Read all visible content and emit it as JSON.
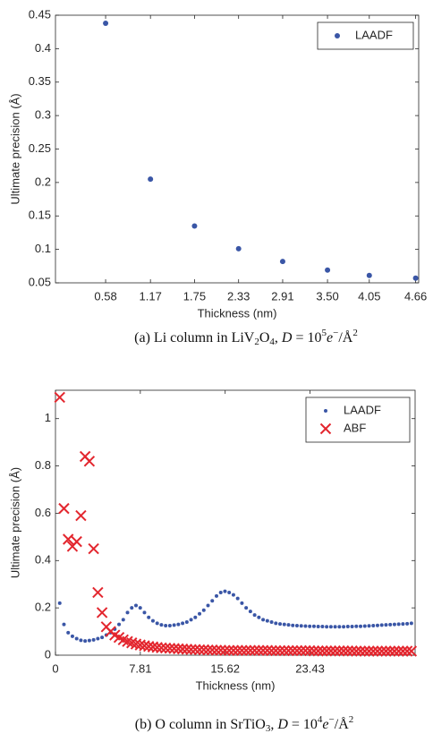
{
  "chart_data": [
    {
      "type": "scatter",
      "x_label": "Thickness (nm)",
      "y_label": "Ultimate precision (Å)",
      "x": [
        0.58,
        1.17,
        1.75,
        2.33,
        2.91,
        3.5,
        4.05,
        4.66
      ],
      "series": [
        {
          "name": "LAADF",
          "color": "#3a56a6",
          "marker": "dot",
          "values": [
            0.438,
            0.205,
            0.135,
            0.101,
            0.082,
            0.069,
            0.061,
            0.057
          ]
        }
      ],
      "xlim": [
        -0.08,
        4.7
      ],
      "xticks": [
        0.58,
        1.17,
        1.75,
        2.33,
        2.91,
        {
          "value": 3.5,
          "label": "3.50"
        },
        4.05,
        4.66
      ],
      "ylim": [
        0.05,
        0.45
      ],
      "yticks": [
        0.05,
        0.1,
        0.15,
        0.2,
        0.25,
        0.3,
        0.35,
        0.4,
        0.45
      ],
      "legend": "northeast",
      "caption": [
        "(a) Li column in LiV",
        "2",
        "O",
        "4",
        ", ",
        "D",
        " = 10",
        "5",
        "e",
        "−",
        "/Å",
        "2"
      ]
    },
    {
      "type": "scatter",
      "x_label": "Thickness (nm)",
      "y_label": "Ultimate precision (Å)",
      "x": [
        0.39,
        0.78,
        1.17,
        1.56,
        1.95,
        2.34,
        2.73,
        3.12,
        3.51,
        3.9,
        4.29,
        4.68,
        5.07,
        5.46,
        5.85,
        6.24,
        6.63,
        7.02,
        7.41,
        7.8,
        8.19,
        8.58,
        8.97,
        9.36,
        9.75,
        10.14,
        10.53,
        10.92,
        11.31,
        11.7,
        12.09,
        12.48,
        12.87,
        13.26,
        13.65,
        14.04,
        14.43,
        14.82,
        15.21,
        15.6,
        15.99,
        16.38,
        16.77,
        17.16,
        17.55,
        17.94,
        18.33,
        18.72,
        19.11,
        19.5,
        19.89,
        20.28,
        20.67,
        21.06,
        21.45,
        21.84,
        22.23,
        22.62,
        23.01,
        23.4,
        23.79,
        24.18,
        24.57,
        24.96,
        25.35,
        25.74,
        26.13,
        26.52,
        26.91,
        27.3,
        27.69,
        28.08,
        28.47,
        28.86,
        29.25,
        29.64,
        30.03,
        30.42,
        30.81,
        31.2,
        31.59,
        31.98,
        32.37,
        32.76
      ],
      "series": [
        {
          "name": "LAADF",
          "color": "#3a56a6",
          "marker": "dot",
          "values": [
            0.22,
            0.13,
            0.095,
            0.08,
            0.07,
            0.063,
            0.06,
            0.062,
            0.065,
            0.07,
            0.075,
            0.085,
            0.095,
            0.11,
            0.13,
            0.15,
            0.18,
            0.2,
            0.21,
            0.2,
            0.18,
            0.16,
            0.145,
            0.135,
            0.128,
            0.125,
            0.125,
            0.127,
            0.13,
            0.135,
            0.14,
            0.15,
            0.16,
            0.175,
            0.19,
            0.21,
            0.23,
            0.25,
            0.265,
            0.27,
            0.265,
            0.255,
            0.24,
            0.22,
            0.2,
            0.185,
            0.17,
            0.16,
            0.15,
            0.145,
            0.14,
            0.135,
            0.132,
            0.13,
            0.128,
            0.126,
            0.125,
            0.124,
            0.123,
            0.122,
            0.122,
            0.121,
            0.121,
            0.12,
            0.12,
            0.12,
            0.12,
            0.12,
            0.121,
            0.121,
            0.122,
            0.122,
            0.123,
            0.124,
            0.125,
            0.126,
            0.127,
            0.128,
            0.129,
            0.13,
            0.131,
            0.132,
            0.133,
            0.135
          ]
        },
        {
          "name": "ABF",
          "color": "#e3262e",
          "marker": "x",
          "values": [
            1.09,
            0.62,
            0.49,
            0.46,
            0.48,
            0.59,
            0.84,
            0.82,
            0.45,
            0.265,
            0.18,
            0.12,
            0.1,
            0.085,
            0.075,
            0.065,
            0.058,
            0.052,
            0.047,
            0.043,
            0.04,
            0.037,
            0.035,
            0.033,
            0.031,
            0.03,
            0.029,
            0.028,
            0.027,
            0.026,
            0.025,
            0.024,
            0.024,
            0.023,
            0.023,
            0.022,
            0.022,
            0.021,
            0.021,
            0.02,
            0.02,
            0.02,
            0.02,
            0.02,
            0.02,
            0.02,
            0.02,
            0.02,
            0.02,
            0.02,
            0.019,
            0.019,
            0.019,
            0.019,
            0.019,
            0.019,
            0.019,
            0.019,
            0.019,
            0.019,
            0.018,
            0.018,
            0.018,
            0.018,
            0.018,
            0.018,
            0.018,
            0.018,
            0.018,
            0.018,
            0.017,
            0.017,
            0.017,
            0.017,
            0.017,
            0.017,
            0.017,
            0.017,
            0.017,
            0.017,
            0.017,
            0.017,
            0.017,
            0.017
          ]
        }
      ],
      "xlim": [
        0,
        33.1
      ],
      "xticks": [
        0,
        7.81,
        15.62,
        23.43
      ],
      "ylim": [
        0,
        1.12
      ],
      "yticks": [
        0,
        0.2,
        0.4,
        0.6,
        0.8,
        1
      ],
      "legend": "northeast",
      "caption": [
        "(b) O column in SrTiO",
        "3",
        ", ",
        "D",
        " = 10",
        "4",
        "e",
        "−",
        "/Å",
        "2"
      ]
    }
  ]
}
